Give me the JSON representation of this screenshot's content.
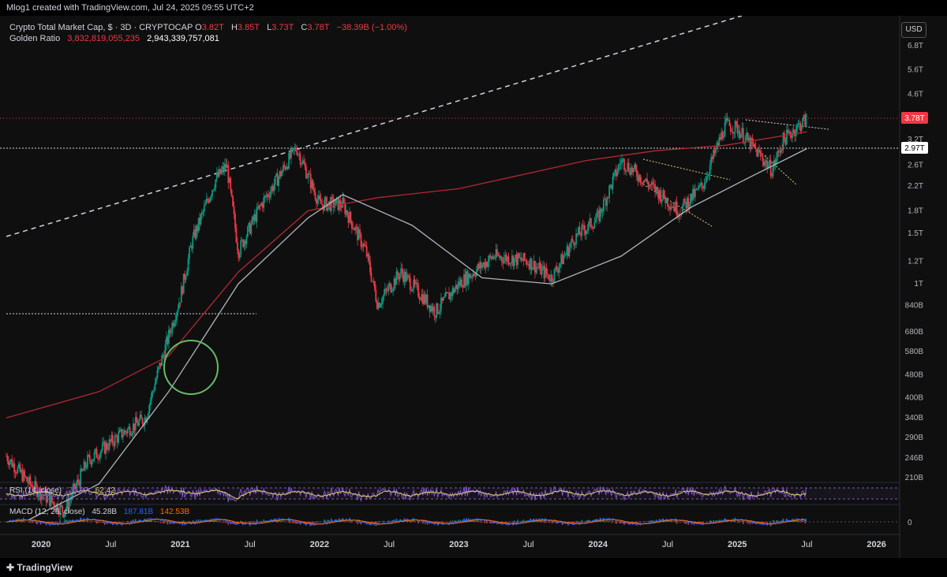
{
  "header": {
    "credit": "Mlog1 created with TradingView.com, Jul 24, 2025 09:55 UTC+2"
  },
  "legend": {
    "symbol": "Crypto Total Market Cap, $ · 3D · CRYPTOCAP",
    "open_label": "O",
    "open": "3.82T",
    "high_label": "H",
    "high": "3.85T",
    "low_label": "L",
    "low": "3.73T",
    "close_label": "C",
    "close": "3.78T",
    "change": "−38.39B (−1.00%)",
    "golden_label": "Golden Ratio",
    "golden_v1": "3,832,819,055,235",
    "golden_v2": "2,943,339,757,081"
  },
  "currency": "USD",
  "price_tag": "3.78T",
  "level_tag": "2.97T",
  "rsi": {
    "label": "RSI (14, close)",
    "v1": "70.97",
    "v2": "62.42"
  },
  "macd": {
    "label": "MACD (12, 26, close)",
    "v1": "45.28B",
    "v2": "187.81B",
    "v3": "142.53B",
    "zero": "0"
  },
  "branding": "TradingView",
  "colors": {
    "up": "#089981",
    "down": "#f23645",
    "ma_long": "#b22833",
    "ma_short": "#b2b5be",
    "accent": "#f23645",
    "circle": "#66bb6a"
  },
  "chart_data": {
    "type": "line",
    "title": "Crypto Total Market Cap",
    "scale": "log",
    "y_ticks": [
      "6.8T",
      "5.6T",
      "4.6T",
      "3.2T",
      "2.6T",
      "2.2T",
      "1.8T",
      "1.5T",
      "1.2T",
      "1T",
      "840B",
      "680B",
      "580B",
      "480B",
      "400B",
      "340B",
      "290B",
      "246B",
      "210B"
    ],
    "x_ticks": [
      "2020",
      "Jul",
      "2021",
      "Jul",
      "2022",
      "Jul",
      "2023",
      "Jul",
      "2024",
      "Jul",
      "2025",
      "Jul",
      "2026"
    ],
    "series": [
      {
        "points": [
          [
            "2019-10",
            250
          ],
          [
            "2019-12",
            200
          ],
          [
            "2020-03",
            160
          ],
          [
            "2020-05",
            240
          ],
          [
            "2020-08",
            300
          ],
          [
            "2020-10",
            340
          ],
          [
            "2020-11",
            480
          ],
          [
            "2021-01",
            900
          ],
          [
            "2021-02",
            1400
          ],
          [
            "2021-04",
            2300
          ],
          [
            "2021-05",
            2600
          ],
          [
            "2021-06",
            1300
          ],
          [
            "2021-08",
            1900
          ],
          [
            "2021-09",
            2200
          ],
          [
            "2021-11",
            3000
          ],
          [
            "2022-01",
            1900
          ],
          [
            "2022-03",
            1900
          ],
          [
            "2022-05",
            1300
          ],
          [
            "2022-06",
            850
          ],
          [
            "2022-08",
            1100
          ],
          [
            "2022-11",
            800
          ],
          [
            "2023-01",
            1000
          ],
          [
            "2023-04",
            1250
          ],
          [
            "2023-07",
            1200
          ],
          [
            "2023-09",
            1050
          ],
          [
            "2023-11",
            1450
          ],
          [
            "2024-01",
            1700
          ],
          [
            "2024-03",
            2700
          ],
          [
            "2024-05",
            2300
          ],
          [
            "2024-08",
            1800
          ],
          [
            "2024-10",
            2200
          ],
          [
            "2024-12",
            3600
          ],
          [
            "2025-01",
            3500
          ],
          [
            "2025-04",
            2500
          ],
          [
            "2025-05",
            3200
          ],
          [
            "2025-07",
            3780
          ]
        ]
      },
      {
        "points": [
          [
            "2019-10",
            340
          ],
          [
            "2020-06",
            420
          ],
          [
            "2020-12",
            560
          ],
          [
            "2021-06",
            1100
          ],
          [
            "2021-12",
            1800
          ],
          [
            "2022-06",
            2000
          ],
          [
            "2023-01",
            2150
          ],
          [
            "2023-12",
            2700
          ],
          [
            "2024-06",
            2920
          ],
          [
            "2024-12",
            3050
          ],
          [
            "2025-07",
            3400
          ]
        ]
      },
      {
        "points": [
          [
            "2019-12",
            150
          ],
          [
            "2020-06",
            200
          ],
          [
            "2020-12",
            420
          ],
          [
            "2021-06",
            1000
          ],
          [
            "2021-12",
            1700
          ],
          [
            "2022-03",
            2050
          ],
          [
            "2022-09",
            1600
          ],
          [
            "2023-03",
            1050
          ],
          [
            "2023-09",
            1000
          ],
          [
            "2024-03",
            1250
          ],
          [
            "2024-09",
            1850
          ],
          [
            "2025-02",
            2350
          ],
          [
            "2025-07",
            2970
          ]
        ]
      }
    ]
  }
}
